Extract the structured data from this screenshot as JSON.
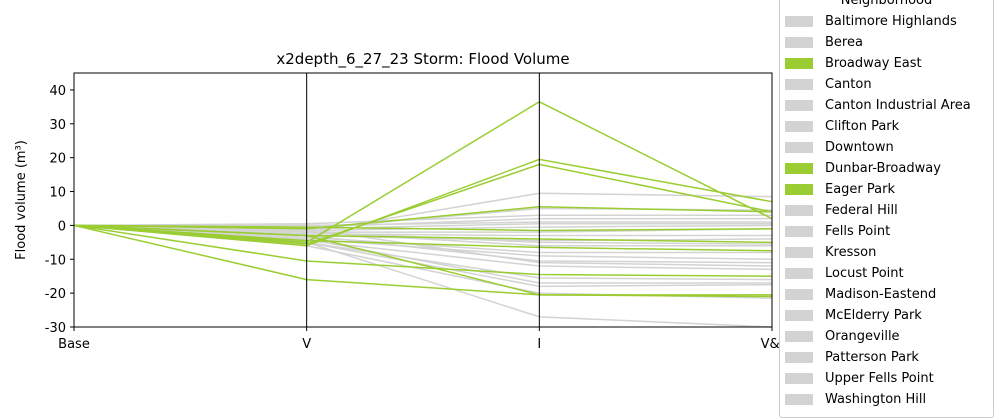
{
  "chart_data": {
    "type": "line",
    "title": "x2depth_6_27_23 Storm: Flood Volume",
    "xlabel": "",
    "ylabel": "Flood volume (m³)",
    "categories": [
      "Base",
      "V",
      "I",
      "V&I"
    ],
    "ylim": [
      -30,
      45
    ],
    "yticks": [
      -30,
      -20,
      -10,
      0,
      10,
      20,
      30,
      40
    ],
    "legend_title": "Neighborhood",
    "legend": [
      {
        "name": "Baltimore Highlands",
        "color": "#d3d3d3"
      },
      {
        "name": "Berea",
        "color": "#d3d3d3"
      },
      {
        "name": "Broadway East",
        "color": "#9acd32"
      },
      {
        "name": "Canton",
        "color": "#d3d3d3"
      },
      {
        "name": "Canton Industrial Area",
        "color": "#d3d3d3"
      },
      {
        "name": "Clifton Park",
        "color": "#d3d3d3"
      },
      {
        "name": "Downtown",
        "color": "#d3d3d3"
      },
      {
        "name": "Dunbar-Broadway",
        "color": "#9acd32"
      },
      {
        "name": "Eager Park",
        "color": "#9acd32"
      },
      {
        "name": "Federal Hill",
        "color": "#d3d3d3"
      },
      {
        "name": "Fells Point",
        "color": "#d3d3d3"
      },
      {
        "name": "Kresson",
        "color": "#d3d3d3"
      },
      {
        "name": "Locust Point",
        "color": "#d3d3d3"
      },
      {
        "name": "Madison-Eastend",
        "color": "#d3d3d3"
      },
      {
        "name": "McElderry Park",
        "color": "#d3d3d3"
      },
      {
        "name": "Orangeville",
        "color": "#d3d3d3"
      },
      {
        "name": "Patterson Park",
        "color": "#d3d3d3"
      },
      {
        "name": "Upper Fells Point",
        "color": "#d3d3d3"
      },
      {
        "name": "Washington Hill",
        "color": "#d3d3d3"
      }
    ],
    "series": [
      {
        "color": "#d3d3d3",
        "values": [
          0,
          -2,
          9.5,
          8.5
        ]
      },
      {
        "color": "#d3d3d3",
        "values": [
          0,
          -1,
          5,
          4.5
        ]
      },
      {
        "color": "#d3d3d3",
        "values": [
          0,
          0.5,
          3,
          3
        ]
      },
      {
        "color": "#d3d3d3",
        "values": [
          0,
          -0.5,
          2,
          2
        ]
      },
      {
        "color": "#d3d3d3",
        "values": [
          0,
          0,
          1,
          1
        ]
      },
      {
        "color": "#d3d3d3",
        "values": [
          0,
          -1,
          0.5,
          0.5
        ]
      },
      {
        "color": "#d3d3d3",
        "values": [
          0,
          -1.5,
          -0.5,
          0
        ]
      },
      {
        "color": "#d3d3d3",
        "values": [
          0,
          -2,
          -2,
          -1
        ]
      },
      {
        "color": "#d3d3d3",
        "values": [
          0,
          -2.5,
          -3,
          -3
        ]
      },
      {
        "color": "#d3d3d3",
        "values": [
          0,
          -3,
          -4.5,
          -4
        ]
      },
      {
        "color": "#d3d3d3",
        "values": [
          0,
          -2,
          -6,
          -6
        ]
      },
      {
        "color": "#d3d3d3",
        "values": [
          0,
          -3.5,
          -8,
          -8
        ]
      },
      {
        "color": "#d3d3d3",
        "values": [
          0,
          -4,
          -9,
          -10
        ]
      },
      {
        "color": "#d3d3d3",
        "values": [
          0,
          -3,
          -10.5,
          -11
        ]
      },
      {
        "color": "#d3d3d3",
        "values": [
          0,
          -4.5,
          -12,
          -13
        ]
      },
      {
        "color": "#d3d3d3",
        "values": [
          0,
          -5,
          -15.5,
          -16
        ]
      },
      {
        "color": "#d3d3d3",
        "values": [
          0,
          -4,
          -17,
          -17
        ]
      },
      {
        "color": "#d3d3d3",
        "values": [
          0,
          -5,
          -18,
          -17.5
        ]
      },
      {
        "color": "#d3d3d3",
        "values": [
          0,
          -6,
          -20,
          -21.5
        ]
      },
      {
        "color": "#d3d3d3",
        "values": [
          0,
          -5,
          -27,
          -30
        ]
      },
      {
        "color": "#d3d3d3",
        "values": [
          0,
          -1,
          -11,
          -12
        ]
      },
      {
        "color": "#d3d3d3",
        "values": [
          0,
          -2,
          -5,
          -5.5
        ]
      },
      {
        "color": "#9acd32",
        "values": [
          0,
          -5,
          36.5,
          2
        ]
      },
      {
        "color": "#9acd32",
        "values": [
          0,
          -6,
          19.5,
          7
        ]
      },
      {
        "color": "#9acd32",
        "values": [
          0,
          -5.5,
          18,
          4
        ]
      },
      {
        "color": "#9acd32",
        "values": [
          0,
          -1,
          5.5,
          4
        ]
      },
      {
        "color": "#9acd32",
        "values": [
          0,
          -0.5,
          -1.5,
          -1
        ]
      },
      {
        "color": "#9acd32",
        "values": [
          0,
          -3,
          -4,
          -5
        ]
      },
      {
        "color": "#9acd32",
        "values": [
          0,
          -4.5,
          -6.5,
          -7.5
        ]
      },
      {
        "color": "#9acd32",
        "values": [
          0,
          -10.5,
          -14.5,
          -15
        ]
      },
      {
        "color": "#9acd32",
        "values": [
          0,
          -16,
          -20.5,
          -20.5
        ]
      },
      {
        "color": "#9acd32",
        "values": [
          0,
          -3,
          -20.5,
          -21
        ]
      }
    ]
  }
}
